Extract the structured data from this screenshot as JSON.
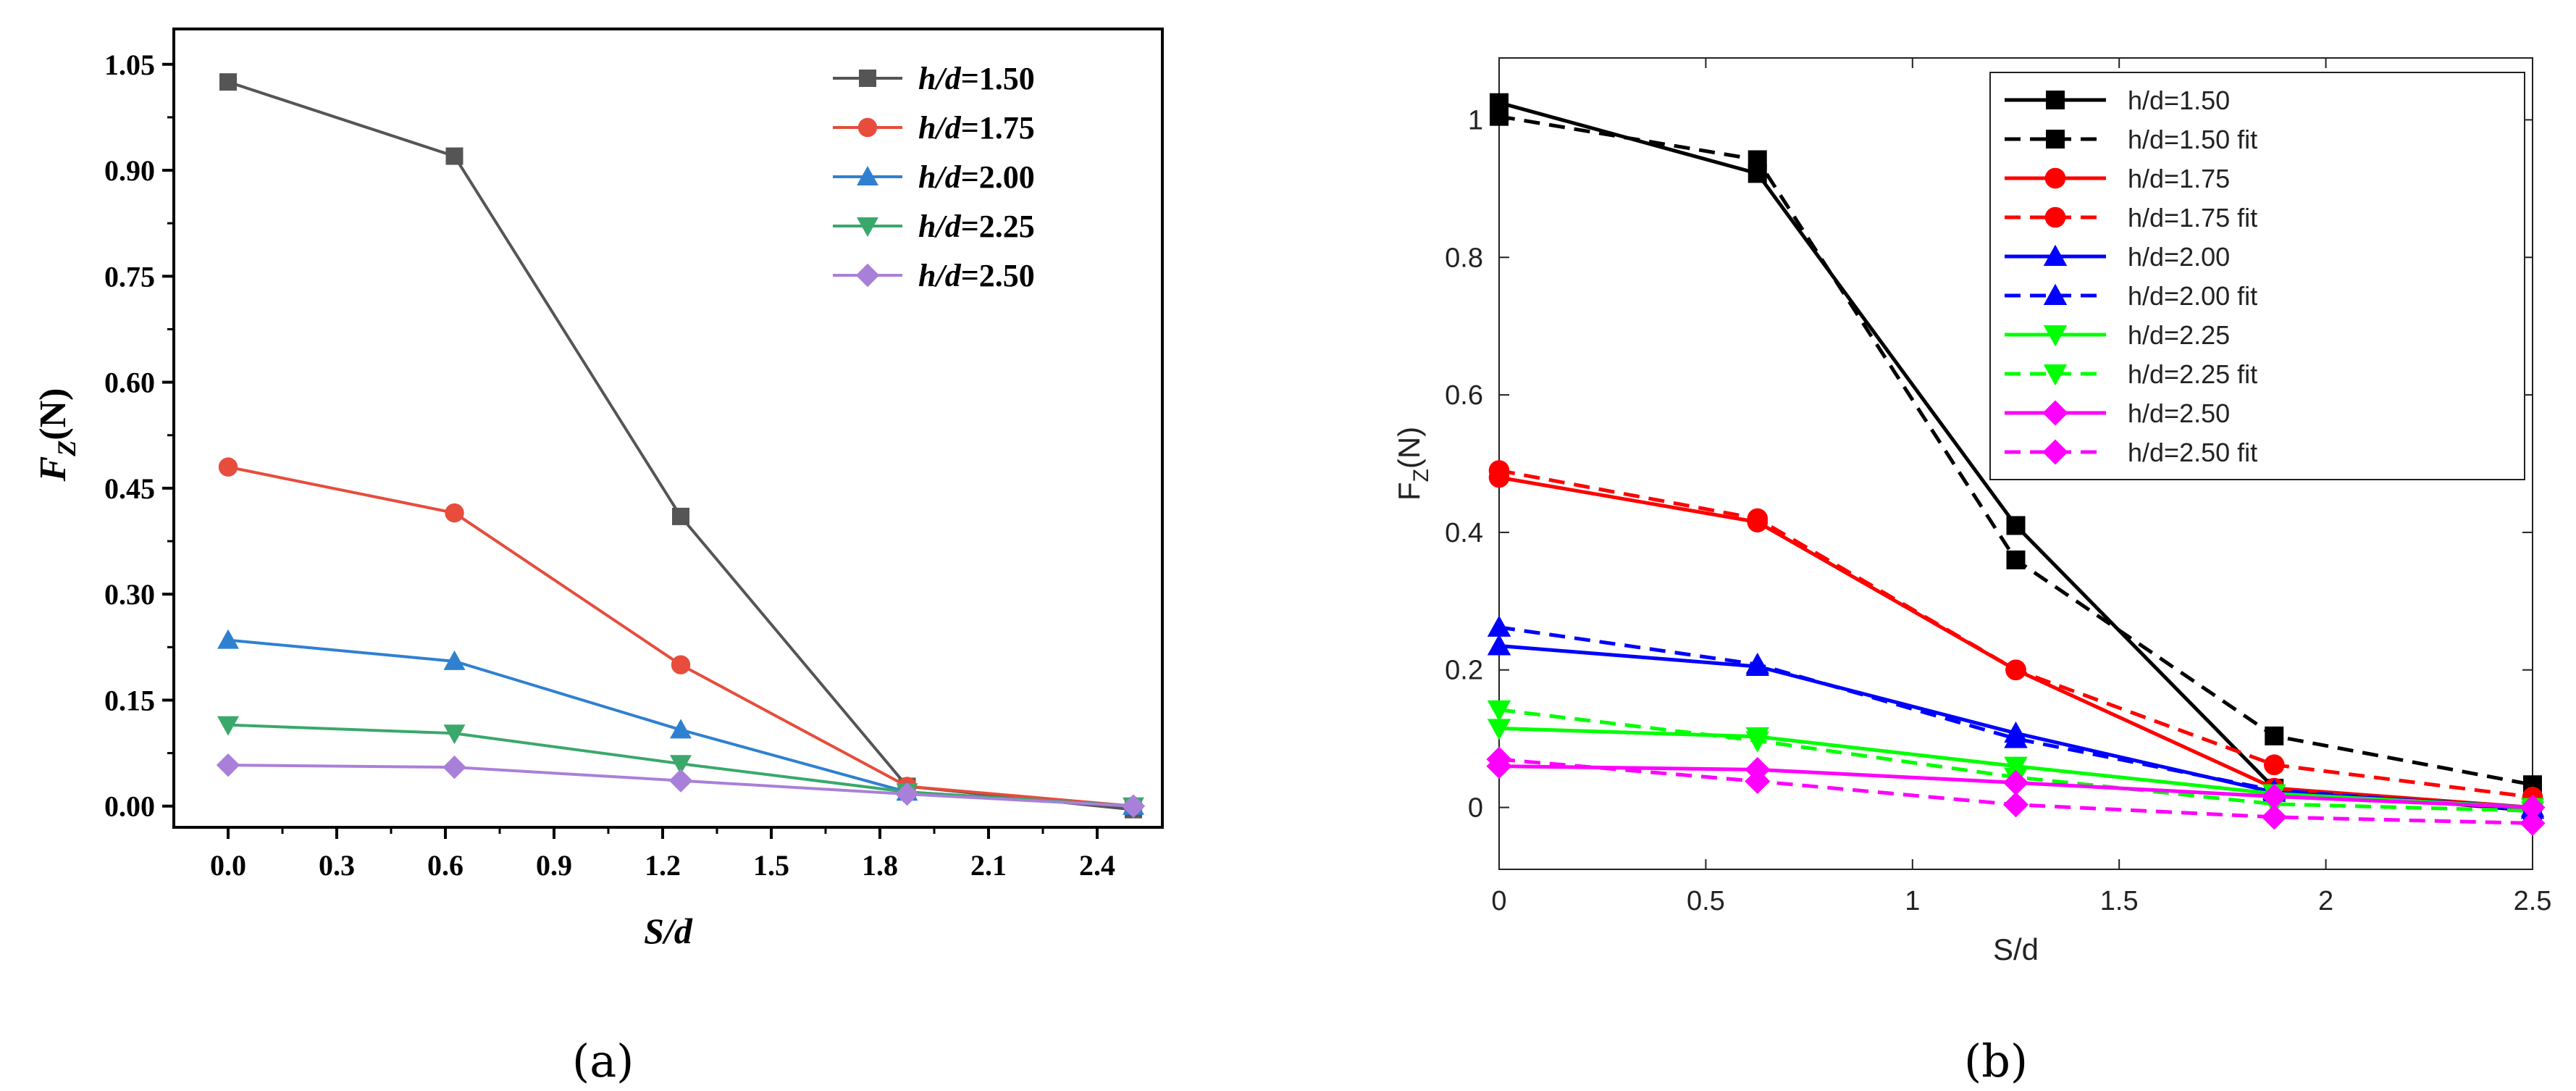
{
  "chart_data": [
    {
      "type": "line",
      "panel_label": "(a)",
      "xlabel": "S/d",
      "ylabel_main": "F",
      "ylabel_sub": "Z",
      "ylabel_unit": "(N)",
      "xlim": [
        -0.15,
        2.58
      ],
      "ylim": [
        -0.03,
        1.1
      ],
      "xticks": [
        "0.0",
        "0.3",
        "0.6",
        "0.9",
        "1.2",
        "1.5",
        "1.8",
        "2.1",
        "2.4"
      ],
      "xtick_values": [
        0,
        0.3,
        0.6,
        0.9,
        1.2,
        1.5,
        1.8,
        2.1,
        2.4
      ],
      "yticks": [
        "0.00",
        "0.15",
        "0.30",
        "0.45",
        "0.60",
        "0.75",
        "0.90",
        "1.05"
      ],
      "ytick_values": [
        0,
        0.15,
        0.3,
        0.45,
        0.6,
        0.75,
        0.9,
        1.05
      ],
      "x": [
        0,
        0.625,
        1.25,
        1.875,
        2.5
      ],
      "legend_position": "top-right",
      "series": [
        {
          "name_prefix": "h/d",
          "name_value": "=1.50",
          "color": "#555555",
          "marker": "square",
          "values": [
            1.025,
            0.92,
            0.41,
            0.028,
            -0.005
          ]
        },
        {
          "name_prefix": "h/d",
          "name_value": "=1.75",
          "color": "#e74c3c",
          "marker": "circle",
          "values": [
            0.48,
            0.415,
            0.2,
            0.028,
            0.0
          ]
        },
        {
          "name_prefix": "h/d",
          "name_value": "=2.00",
          "color": "#2f80d1",
          "marker": "triangle-up",
          "values": [
            0.235,
            0.205,
            0.108,
            0.02,
            0.0
          ]
        },
        {
          "name_prefix": "h/d",
          "name_value": "=2.25",
          "color": "#3aa86b",
          "marker": "triangle-down",
          "values": [
            0.115,
            0.103,
            0.06,
            0.02,
            0.0
          ]
        },
        {
          "name_prefix": "h/d",
          "name_value": "=2.50",
          "color": "#a980d9",
          "marker": "diamond",
          "values": [
            0.058,
            0.055,
            0.036,
            0.017,
            0.0
          ]
        }
      ]
    },
    {
      "type": "line",
      "panel_label": "(b)",
      "xlabel": "S/d",
      "ylabel_main": "F",
      "ylabel_sub": "Z",
      "ylabel_unit": "(N)",
      "xlim": [
        0,
        2.5
      ],
      "ylim": [
        -0.09,
        1.09
      ],
      "xticks": [
        "0",
        "0.5",
        "1",
        "1.5",
        "2",
        "2.5"
      ],
      "xtick_values": [
        0,
        0.5,
        1,
        1.5,
        2,
        2.5
      ],
      "yticks": [
        "0",
        "0.2",
        "0.4",
        "0.6",
        "0.8",
        "1"
      ],
      "ytick_values": [
        0,
        0.2,
        0.4,
        0.6,
        0.8,
        1
      ],
      "x": [
        0,
        0.625,
        1.25,
        1.875,
        2.5
      ],
      "legend_position": "top-right",
      "series": [
        {
          "name": "h/d=1.50",
          "color": "#000000",
          "marker": "square",
          "dashed": false,
          "values": [
            1.025,
            0.922,
            0.41,
            0.028,
            -0.005
          ]
        },
        {
          "name": "h/d=1.50 fit",
          "color": "#000000",
          "marker": "square",
          "dashed": true,
          "values": [
            1.005,
            0.942,
            0.36,
            0.104,
            0.033
          ]
        },
        {
          "name": "h/d=1.75",
          "color": "#ff0000",
          "marker": "circle",
          "dashed": false,
          "values": [
            0.48,
            0.415,
            0.2,
            0.028,
            0.0
          ]
        },
        {
          "name": "h/d=1.75 fit",
          "color": "#ff0000",
          "marker": "circle",
          "dashed": true,
          "values": [
            0.49,
            0.42,
            0.2,
            0.062,
            0.015
          ]
        },
        {
          "name": "h/d=2.00",
          "color": "#0000ff",
          "marker": "triangle-up",
          "dashed": false,
          "values": [
            0.235,
            0.205,
            0.108,
            0.022,
            0.0
          ]
        },
        {
          "name": "h/d=2.00 fit",
          "color": "#0000ff",
          "marker": "triangle-up",
          "dashed": true,
          "values": [
            0.262,
            0.208,
            0.1,
            0.025,
            -0.003
          ]
        },
        {
          "name": "h/d=2.25",
          "color": "#00ff00",
          "marker": "triangle-down",
          "dashed": false,
          "values": [
            0.115,
            0.103,
            0.06,
            0.02,
            0.0
          ]
        },
        {
          "name": "h/d=2.25 fit",
          "color": "#00ff00",
          "marker": "triangle-down",
          "dashed": true,
          "values": [
            0.142,
            0.097,
            0.044,
            0.005,
            -0.005
          ]
        },
        {
          "name": "h/d=2.50",
          "color": "#ff00ff",
          "marker": "diamond",
          "dashed": false,
          "values": [
            0.06,
            0.055,
            0.036,
            0.016,
            0.0
          ]
        },
        {
          "name": "h/d=2.50 fit",
          "color": "#ff00ff",
          "marker": "diamond",
          "dashed": true,
          "values": [
            0.07,
            0.038,
            0.004,
            -0.014,
            -0.023
          ]
        }
      ]
    }
  ]
}
